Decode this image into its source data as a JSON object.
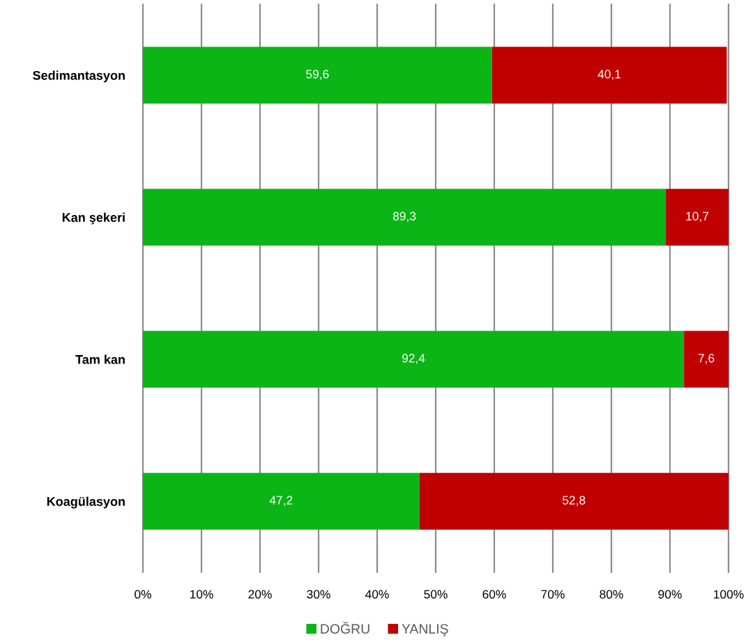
{
  "chart_data": {
    "type": "bar",
    "orientation": "horizontal",
    "stacked": true,
    "categories": [
      "Sedimantasyon",
      "Kan şekeri",
      "Tam kan",
      "Koagülasyon"
    ],
    "series": [
      {
        "name": "DOĞRU",
        "color": "#0bb515",
        "values": [
          59.6,
          89.3,
          92.4,
          47.2
        ],
        "value_labels": [
          "59,6",
          "89,3",
          "92,4",
          "47,2"
        ]
      },
      {
        "name": "YANLIŞ",
        "color": "#c00000",
        "values": [
          40.1,
          10.7,
          7.6,
          52.8
        ],
        "value_labels": [
          "40,1",
          "10,7",
          "7,6",
          "52,8"
        ]
      }
    ],
    "xlim": [
      0,
      100
    ],
    "xticks": [
      {
        "value": 0,
        "label": "0%"
      },
      {
        "value": 10,
        "label": "10%"
      },
      {
        "value": 20,
        "label": "20%"
      },
      {
        "value": 30,
        "label": "30%"
      },
      {
        "value": 40,
        "label": "40%"
      },
      {
        "value": 50,
        "label": "50%"
      },
      {
        "value": 60,
        "label": "60%"
      },
      {
        "value": 70,
        "label": "70%"
      },
      {
        "value": 80,
        "label": "80%"
      },
      {
        "value": 90,
        "label": "90%"
      },
      {
        "value": 100,
        "label": "100%"
      }
    ],
    "grid": "x",
    "legend": "bottom"
  }
}
